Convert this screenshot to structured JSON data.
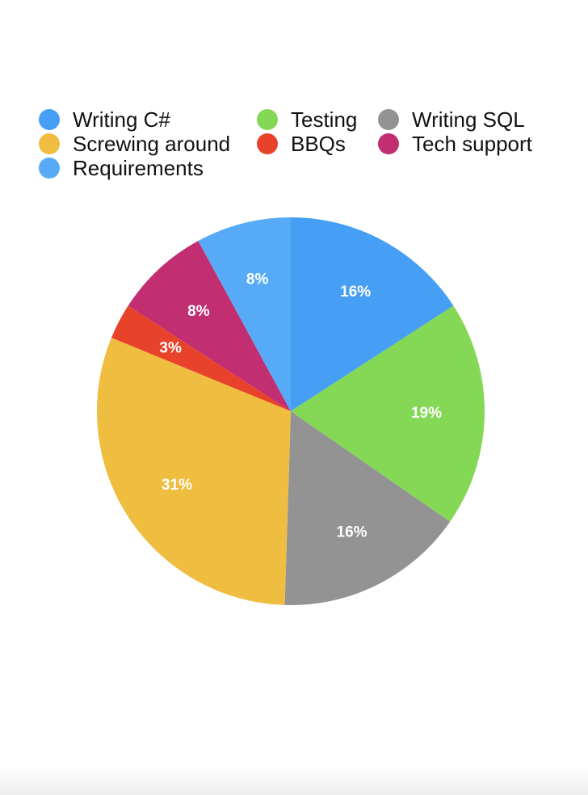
{
  "chart_data": {
    "type": "pie",
    "title": "",
    "start_angle_deg": 0,
    "direction": "clockwise",
    "legend_position": "top",
    "slices": [
      {
        "label": "Writing C#",
        "value": 16,
        "value_label": "16%",
        "color": "#469FF4"
      },
      {
        "label": "Testing",
        "value": 19,
        "value_label": "19%",
        "color": "#85D855"
      },
      {
        "label": "Writing SQL",
        "value": 16,
        "value_label": "16%",
        "color": "#939393"
      },
      {
        "label": "Screwing around",
        "value": 31,
        "value_label": "31%",
        "color": "#EFBD40"
      },
      {
        "label": "BBQs",
        "value": 3,
        "value_label": "3%",
        "color": "#E9422B"
      },
      {
        "label": "Tech support",
        "value": 8,
        "value_label": "8%",
        "color": "#C22E72"
      },
      {
        "label": "Requirements",
        "value": 8,
        "value_label": "8%",
        "color": "#57ABF6"
      }
    ],
    "legend_order": [
      0,
      1,
      2,
      3,
      4,
      5,
      6
    ]
  }
}
